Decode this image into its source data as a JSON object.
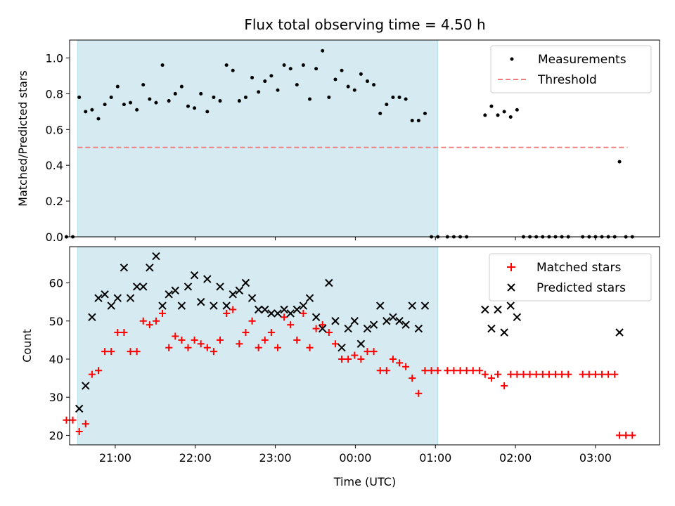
{
  "chart_data": {
    "type": "scatter",
    "title": "Flux total observing time = 4.50 h",
    "xlabel": "Time (UTC)",
    "x_unit": "hours since 20:00 UTC",
    "xlim": [
      20.43,
      27.8
    ],
    "xticks": [
      {
        "value": 21,
        "label": "21:00"
      },
      {
        "value": 22,
        "label": "22:00"
      },
      {
        "value": 23,
        "label": "23:00"
      },
      {
        "value": 24,
        "label": "00:00"
      },
      {
        "value": 25,
        "label": "01:00"
      },
      {
        "value": 26,
        "label": "02:00"
      },
      {
        "value": 27,
        "label": "03:00"
      }
    ],
    "observing_window": {
      "start": 20.53,
      "end": 25.03,
      "color": "#d5ebf1"
    },
    "top": {
      "ylabel": "Matched/Predicted stars",
      "ylim": [
        0,
        1.1
      ],
      "yticks": [
        0.0,
        0.2,
        0.4,
        0.6,
        0.8,
        1.0
      ],
      "legend": {
        "position": "top-right",
        "items": [
          {
            "label": "Measurements",
            "marker": "dot",
            "color": "#000000"
          },
          {
            "label": "Threshold",
            "marker": "dashed-line",
            "color": "#f08080"
          }
        ]
      },
      "threshold": {
        "value": 0.5,
        "x_start": 20.53,
        "x_end": 27.4,
        "color": "#f08080"
      },
      "measurements": [
        [
          20.39,
          0.0
        ],
        [
          20.47,
          0.0
        ],
        [
          20.55,
          0.78
        ],
        [
          20.63,
          0.7
        ],
        [
          20.71,
          0.71
        ],
        [
          20.79,
          0.66
        ],
        [
          20.87,
          0.74
        ],
        [
          20.95,
          0.78
        ],
        [
          21.03,
          0.84
        ],
        [
          21.11,
          0.74
        ],
        [
          21.19,
          0.75
        ],
        [
          21.27,
          0.71
        ],
        [
          21.35,
          0.85
        ],
        [
          21.43,
          0.77
        ],
        [
          21.51,
          0.75
        ],
        [
          21.59,
          0.96
        ],
        [
          21.67,
          0.76
        ],
        [
          21.75,
          0.8
        ],
        [
          21.83,
          0.84
        ],
        [
          21.91,
          0.73
        ],
        [
          21.99,
          0.72
        ],
        [
          22.07,
          0.8
        ],
        [
          22.15,
          0.7
        ],
        [
          22.23,
          0.78
        ],
        [
          22.31,
          0.76
        ],
        [
          22.39,
          0.96
        ],
        [
          22.47,
          0.93
        ],
        [
          22.55,
          0.76
        ],
        [
          22.63,
          0.78
        ],
        [
          22.71,
          0.89
        ],
        [
          22.79,
          0.81
        ],
        [
          22.87,
          0.87
        ],
        [
          22.95,
          0.9
        ],
        [
          23.03,
          0.82
        ],
        [
          23.11,
          0.96
        ],
        [
          23.19,
          0.94
        ],
        [
          23.27,
          0.85
        ],
        [
          23.35,
          0.96
        ],
        [
          23.43,
          0.77
        ],
        [
          23.51,
          0.94
        ],
        [
          23.59,
          1.04
        ],
        [
          23.67,
          0.78
        ],
        [
          23.75,
          0.88
        ],
        [
          23.83,
          0.93
        ],
        [
          23.91,
          0.84
        ],
        [
          23.99,
          0.82
        ],
        [
          24.07,
          0.91
        ],
        [
          24.15,
          0.87
        ],
        [
          24.23,
          0.85
        ],
        [
          24.31,
          0.69
        ],
        [
          24.39,
          0.74
        ],
        [
          24.47,
          0.78
        ],
        [
          24.55,
          0.78
        ],
        [
          24.63,
          0.77
        ],
        [
          24.71,
          0.65
        ],
        [
          24.79,
          0.65
        ],
        [
          24.87,
          0.69
        ],
        [
          24.95,
          0.0
        ],
        [
          25.03,
          0.0
        ],
        [
          25.15,
          0.0
        ],
        [
          25.23,
          0.0
        ],
        [
          25.31,
          0.0
        ],
        [
          25.39,
          0.0
        ],
        [
          25.62,
          0.68
        ],
        [
          25.7,
          0.73
        ],
        [
          25.78,
          0.68
        ],
        [
          25.86,
          0.7
        ],
        [
          25.94,
          0.67
        ],
        [
          26.02,
          0.71
        ],
        [
          26.1,
          0.0
        ],
        [
          26.18,
          0.0
        ],
        [
          26.26,
          0.0
        ],
        [
          26.34,
          0.0
        ],
        [
          26.42,
          0.0
        ],
        [
          26.5,
          0.0
        ],
        [
          26.58,
          0.0
        ],
        [
          26.66,
          0.0
        ],
        [
          26.84,
          0.0
        ],
        [
          26.92,
          0.0
        ],
        [
          27.0,
          0.0
        ],
        [
          27.08,
          0.0
        ],
        [
          27.16,
          0.0
        ],
        [
          27.24,
          0.0
        ],
        [
          27.3,
          0.42
        ],
        [
          27.38,
          0.0
        ],
        [
          27.46,
          0.0
        ]
      ]
    },
    "bottom": {
      "ylabel": "Count",
      "ylim": [
        17.5,
        69.5
      ],
      "yticks": [
        20,
        30,
        40,
        50,
        60
      ],
      "legend": {
        "position": "top-right",
        "items": [
          {
            "label": "Matched stars",
            "marker": "plus",
            "color": "#ff0000"
          },
          {
            "label": "Predicted stars",
            "marker": "x",
            "color": "#000000"
          }
        ]
      },
      "matched": [
        [
          20.39,
          24
        ],
        [
          20.47,
          24
        ],
        [
          20.55,
          21
        ],
        [
          20.63,
          23
        ],
        [
          20.71,
          36
        ],
        [
          20.79,
          37
        ],
        [
          20.87,
          42
        ],
        [
          20.95,
          42
        ],
        [
          21.03,
          47
        ],
        [
          21.11,
          47
        ],
        [
          21.19,
          42
        ],
        [
          21.27,
          42
        ],
        [
          21.35,
          50
        ],
        [
          21.43,
          49
        ],
        [
          21.51,
          50
        ],
        [
          21.59,
          52
        ],
        [
          21.67,
          43
        ],
        [
          21.75,
          46
        ],
        [
          21.83,
          45
        ],
        [
          21.91,
          43
        ],
        [
          21.99,
          45
        ],
        [
          22.07,
          44
        ],
        [
          22.15,
          43
        ],
        [
          22.23,
          42
        ],
        [
          22.31,
          45
        ],
        [
          22.39,
          52
        ],
        [
          22.47,
          53
        ],
        [
          22.55,
          44
        ],
        [
          22.63,
          47
        ],
        [
          22.71,
          50
        ],
        [
          22.79,
          43
        ],
        [
          22.87,
          45
        ],
        [
          22.95,
          47
        ],
        [
          23.03,
          43
        ],
        [
          23.11,
          51
        ],
        [
          23.19,
          49
        ],
        [
          23.27,
          45
        ],
        [
          23.35,
          52
        ],
        [
          23.43,
          43
        ],
        [
          23.51,
          48
        ],
        [
          23.59,
          49
        ],
        [
          23.67,
          47
        ],
        [
          23.75,
          44
        ],
        [
          23.83,
          40
        ],
        [
          23.91,
          40
        ],
        [
          23.99,
          41
        ],
        [
          24.07,
          40
        ],
        [
          24.15,
          42
        ],
        [
          24.23,
          42
        ],
        [
          24.31,
          37
        ],
        [
          24.39,
          37
        ],
        [
          24.47,
          40
        ],
        [
          24.55,
          39
        ],
        [
          24.63,
          38
        ],
        [
          24.71,
          35
        ],
        [
          24.79,
          31
        ],
        [
          24.87,
          37
        ],
        [
          24.95,
          37
        ],
        [
          25.03,
          37
        ],
        [
          25.15,
          37
        ],
        [
          25.23,
          37
        ],
        [
          25.31,
          37
        ],
        [
          25.39,
          37
        ],
        [
          25.47,
          37
        ],
        [
          25.55,
          37
        ],
        [
          25.62,
          36
        ],
        [
          25.7,
          35
        ],
        [
          25.78,
          36
        ],
        [
          25.86,
          33
        ],
        [
          25.94,
          36
        ],
        [
          26.02,
          36
        ],
        [
          26.1,
          36
        ],
        [
          26.18,
          36
        ],
        [
          26.26,
          36
        ],
        [
          26.34,
          36
        ],
        [
          26.42,
          36
        ],
        [
          26.5,
          36
        ],
        [
          26.58,
          36
        ],
        [
          26.66,
          36
        ],
        [
          26.84,
          36
        ],
        [
          26.92,
          36
        ],
        [
          27.0,
          36
        ],
        [
          27.08,
          36
        ],
        [
          27.16,
          36
        ],
        [
          27.24,
          36
        ],
        [
          27.3,
          20
        ],
        [
          27.38,
          20
        ],
        [
          27.46,
          20
        ]
      ],
      "predicted": [
        [
          20.55,
          27
        ],
        [
          20.63,
          33
        ],
        [
          20.71,
          51
        ],
        [
          20.79,
          56
        ],
        [
          20.87,
          57
        ],
        [
          20.95,
          54
        ],
        [
          21.03,
          56
        ],
        [
          21.11,
          64
        ],
        [
          21.19,
          56
        ],
        [
          21.27,
          59
        ],
        [
          21.35,
          59
        ],
        [
          21.43,
          64
        ],
        [
          21.51,
          67
        ],
        [
          21.59,
          54
        ],
        [
          21.67,
          57
        ],
        [
          21.75,
          58
        ],
        [
          21.83,
          54
        ],
        [
          21.91,
          59
        ],
        [
          21.99,
          62
        ],
        [
          22.07,
          55
        ],
        [
          22.15,
          61
        ],
        [
          22.23,
          54
        ],
        [
          22.31,
          59
        ],
        [
          22.39,
          54
        ],
        [
          22.47,
          57
        ],
        [
          22.55,
          58
        ],
        [
          22.63,
          60
        ],
        [
          22.71,
          56
        ],
        [
          22.79,
          53
        ],
        [
          22.87,
          53
        ],
        [
          22.95,
          52
        ],
        [
          23.03,
          52
        ],
        [
          23.11,
          53
        ],
        [
          23.19,
          52
        ],
        [
          23.27,
          53
        ],
        [
          23.35,
          54
        ],
        [
          23.43,
          56
        ],
        [
          23.51,
          51
        ],
        [
          23.59,
          48
        ],
        [
          23.67,
          60
        ],
        [
          23.75,
          50
        ],
        [
          23.83,
          43
        ],
        [
          23.91,
          48
        ],
        [
          23.99,
          50
        ],
        [
          24.07,
          44
        ],
        [
          24.15,
          48
        ],
        [
          24.23,
          49
        ],
        [
          24.31,
          54
        ],
        [
          24.39,
          50
        ],
        [
          24.47,
          51
        ],
        [
          24.55,
          50
        ],
        [
          24.63,
          49
        ],
        [
          24.71,
          54
        ],
        [
          24.79,
          48
        ],
        [
          24.87,
          54
        ],
        [
          25.62,
          53
        ],
        [
          25.7,
          48
        ],
        [
          25.78,
          53
        ],
        [
          25.86,
          47
        ],
        [
          25.94,
          54
        ],
        [
          26.02,
          51
        ],
        [
          27.3,
          47
        ]
      ]
    }
  }
}
